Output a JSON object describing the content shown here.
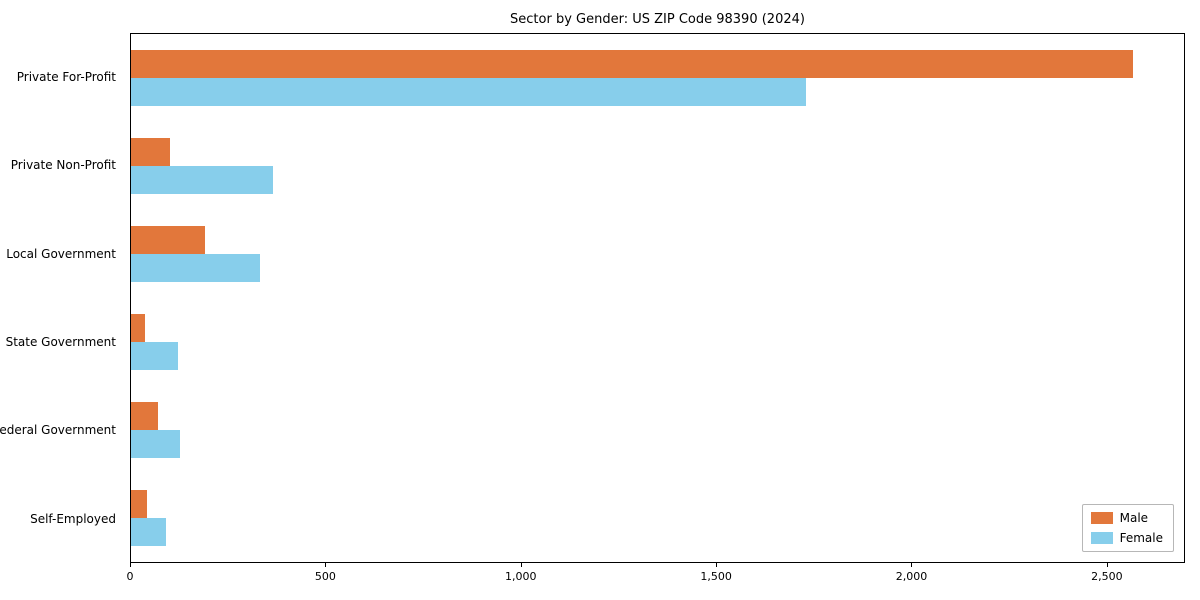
{
  "title": "Sector by Gender: US ZIP Code 98390 (2024)",
  "chart_data": {
    "type": "bar",
    "orientation": "horizontal",
    "title": "Sector by Gender: US ZIP Code 98390 (2024)",
    "categories": [
      "Private For-Profit",
      "Private Non-Profit",
      "Local Government",
      "State Government",
      "Federal Government",
      "Self-Employed"
    ],
    "series": [
      {
        "name": "Male",
        "color": "#e2773b",
        "values": [
          2570,
          100,
          190,
          35,
          70,
          40
        ]
      },
      {
        "name": "Female",
        "color": "#87ceeb",
        "values": [
          1730,
          365,
          330,
          120,
          125,
          90
        ]
      }
    ],
    "xlabel": "",
    "ylabel": "",
    "xlim": [
      0,
      2700
    ],
    "xticks": [
      0,
      500,
      1000,
      1500,
      2000,
      2500
    ],
    "xtick_labels": [
      "0",
      "500",
      "1,000",
      "1,500",
      "2,000",
      "2,500"
    ],
    "grid": false,
    "legend_position": "lower right"
  },
  "legend": {
    "male_label": "Male",
    "female_label": "Female"
  }
}
